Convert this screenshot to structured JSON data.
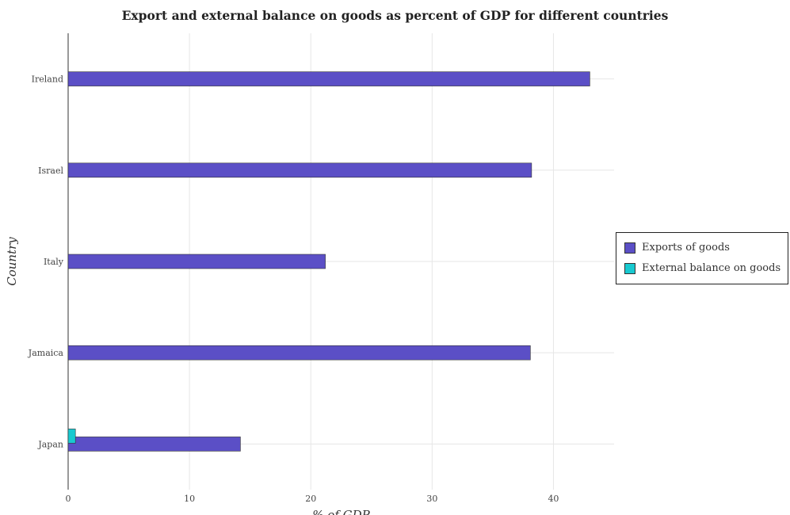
{
  "chart_data": {
    "type": "bar",
    "orientation": "horizontal",
    "title": "Export and external balance on goods as percent of GDP for different countries",
    "xlabel": "% of GDP",
    "ylabel": "Country",
    "categories": [
      "Ireland",
      "Israel",
      "Italy",
      "Jamaica",
      "Japan"
    ],
    "series": [
      {
        "name": "Exports of goods",
        "color": "#5b4fc6",
        "values": [
          43.0,
          38.2,
          21.2,
          38.1,
          14.2
        ]
      },
      {
        "name": "External balance on goods",
        "color": "#18c9d0",
        "values": [
          0,
          0,
          0,
          0,
          0.6
        ]
      }
    ],
    "xlim": [
      0,
      45
    ],
    "xticks": [
      0,
      10,
      20,
      30,
      40
    ],
    "grid": true,
    "legend_position": "right"
  }
}
